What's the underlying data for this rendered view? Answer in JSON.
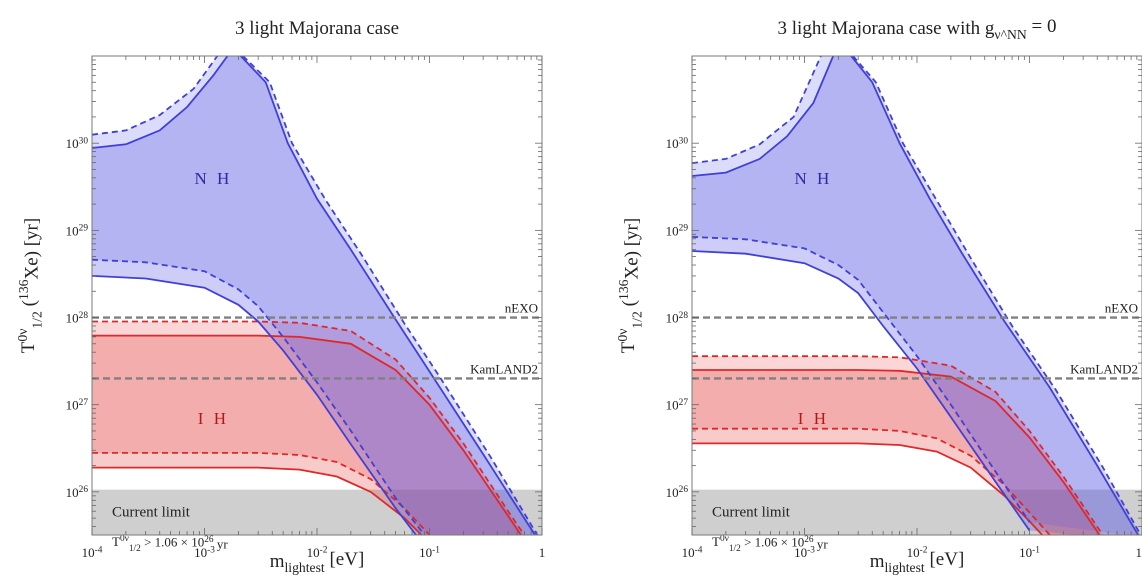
{
  "chart_data": [
    {
      "type": "area",
      "title": "3 light Majorana case",
      "xlabel": "m_lightest [eV]",
      "ylabel": "T^{0ν}_{1/2} (136Xe) [yr]",
      "xscale": "log",
      "yscale": "log",
      "xlim": [
        0.0001,
        1
      ],
      "ylim": [
        3.2e+25,
        1e+31
      ],
      "x_ticks": [
        "10^-4",
        "10^-3",
        "10^-2",
        "10^-1",
        "1"
      ],
      "y_ticks": [
        "10^26",
        "10^27",
        "10^28",
        "10^29",
        "10^30"
      ],
      "limit_lines": [
        {
          "name": "nEXO",
          "value": 1e+28
        },
        {
          "name": "KamLAND2",
          "value": 2e+27
        }
      ],
      "current_limit": {
        "label": "Current limit",
        "text": "T^{0ν}_{1/2} > 1.06 × 10^26 yr",
        "value": 1.06e+26
      },
      "region_labels": {
        "nh": "N H",
        "ih": "I H"
      },
      "series": [
        {
          "name": "N H",
          "color": "#5a5ae6",
          "upper_solid": [
            [
              0.0001,
              8.8e+29
            ],
            [
              0.0002,
              9.7e+29
            ],
            [
              0.0004,
              1.4e+30
            ],
            [
              0.0007,
              2.6e+30
            ],
            [
              0.0012,
              6e+30
            ],
            [
              0.0016,
              1e+31
            ]
          ],
          "upper_dashed": [
            [
              0.0001,
              1.25e+30
            ],
            [
              0.0002,
              1.4e+30
            ],
            [
              0.0004,
              2.1e+30
            ],
            [
              0.0008,
              4.2e+30
            ],
            [
              0.0013,
              1e+31
            ]
          ],
          "right_solid": [
            [
              0.0021,
              1e+31
            ],
            [
              0.0035,
              5e+30
            ],
            [
              0.0055,
              1e+30
            ],
            [
              0.01,
              2.3e+29
            ],
            [
              0.02,
              6e+28
            ],
            [
              0.05,
              9.5e+27
            ],
            [
              0.1,
              2.4e+27
            ],
            [
              0.3,
              2.7e+26
            ],
            [
              1,
              2.4e+25
            ]
          ],
          "right_dashed": [
            [
              0.0022,
              1e+31
            ],
            [
              0.0038,
              5e+30
            ],
            [
              0.006,
              1e+30
            ],
            [
              0.012,
              2.2e+29
            ],
            [
              0.025,
              5.2e+28
            ],
            [
              0.06,
              8.5e+27
            ],
            [
              0.12,
              2.2e+27
            ],
            [
              0.35,
              2.5e+26
            ],
            [
              1,
              2.6e+25
            ]
          ],
          "lower_solid": [
            [
              0.0001,
              3e+28
            ],
            [
              0.0003,
              2.8e+28
            ],
            [
              0.001,
              2.2e+28
            ],
            [
              0.002,
              1.4e+28
            ],
            [
              0.003,
              9e+27
            ],
            [
              0.005,
              4.2e+27
            ],
            [
              0.01,
              1.3e+27
            ],
            [
              0.02,
              3.5e+26
            ],
            [
              0.05,
              6.5e+25
            ],
            [
              0.1,
              2e+25
            ]
          ],
          "lower_dashed": [
            [
              0.0001,
              4.6e+28
            ],
            [
              0.0003,
              4.3e+28
            ],
            [
              0.001,
              3.4e+28
            ],
            [
              0.002,
              2.1e+28
            ],
            [
              0.003,
              1.35e+28
            ],
            [
              0.005,
              6e+27
            ],
            [
              0.01,
              1.8e+27
            ],
            [
              0.02,
              5e+26
            ],
            [
              0.05,
              8.5e+25
            ],
            [
              0.12,
              2e+25
            ]
          ]
        },
        {
          "name": "I H",
          "color": "#e64545",
          "upper_solid": [
            [
              0.0001,
              6.2e+27
            ],
            [
              0.003,
              6.2e+27
            ],
            [
              0.007,
              6e+27
            ],
            [
              0.02,
              5e+27
            ],
            [
              0.05,
              2.5e+27
            ],
            [
              0.1,
              1e+27
            ],
            [
              0.2,
              3e+26
            ],
            [
              0.5,
              5.3e+25
            ],
            [
              1,
              1.4e+25
            ]
          ],
          "upper_dashed": [
            [
              0.0001,
              9e+27
            ],
            [
              0.003,
              9e+27
            ],
            [
              0.007,
              8.7e+27
            ],
            [
              0.02,
              7e+27
            ],
            [
              0.05,
              3.3e+27
            ],
            [
              0.1,
              1.2e+27
            ],
            [
              0.2,
              3.6e+26
            ],
            [
              0.5,
              6e+25
            ],
            [
              1,
              1.6e+25
            ]
          ],
          "lower_solid": [
            [
              0.0001,
              1.9e+26
            ],
            [
              0.003,
              1.9e+26
            ],
            [
              0.007,
              1.8e+26
            ],
            [
              0.015,
              1.5e+26
            ],
            [
              0.03,
              1e+26
            ],
            [
              0.06,
              5e+25
            ],
            [
              0.1,
              2.6e+25
            ],
            [
              0.2,
              8e+24
            ]
          ],
          "lower_dashed": [
            [
              0.0001,
              2.8e+26
            ],
            [
              0.003,
              2.8e+26
            ],
            [
              0.007,
              2.65e+26
            ],
            [
              0.015,
              2.2e+26
            ],
            [
              0.03,
              1.4e+26
            ],
            [
              0.06,
              6.5e+25
            ],
            [
              0.1,
              3.2e+25
            ],
            [
              0.2,
              1e+25
            ]
          ]
        }
      ]
    },
    {
      "type": "area",
      "title": "3 light Majorana case with g_ν^NN = 0",
      "xlabel": "m_lightest [eV]",
      "ylabel": "T^{0ν}_{1/2} (136Xe) [yr]",
      "xscale": "log",
      "yscale": "log",
      "xlim": [
        0.0001,
        1
      ],
      "ylim": [
        3.2e+25,
        1e+31
      ],
      "x_ticks": [
        "10^-4",
        "10^-3",
        "10^-2",
        "10^-1",
        "1"
      ],
      "y_ticks": [
        "10^26",
        "10^27",
        "10^28",
        "10^29",
        "10^30"
      ],
      "limit_lines": [
        {
          "name": "nEXO",
          "value": 1e+28
        },
        {
          "name": "KamLAND2",
          "value": 2e+27
        }
      ],
      "current_limit": {
        "label": "Current limit",
        "text": "T^{0ν}_{1/2} > 1.06 × 10^26 yr",
        "value": 1.06e+26
      },
      "region_labels": {
        "nh": "N H",
        "ih": "I H"
      },
      "series": [
        {
          "name": "N H",
          "color": "#5a5ae6",
          "upper_solid": [
            [
              0.0001,
              4.2e+29
            ],
            [
              0.0002,
              4.6e+29
            ],
            [
              0.0004,
              6.6e+29
            ],
            [
              0.0007,
              1.2e+30
            ],
            [
              0.0012,
              2.9e+30
            ],
            [
              0.0018,
              1e+31
            ]
          ],
          "upper_dashed": [
            [
              0.0001,
              5.9e+29
            ],
            [
              0.0002,
              6.6e+29
            ],
            [
              0.0004,
              9.7e+29
            ],
            [
              0.0008,
              2e+30
            ],
            [
              0.0014,
              1e+31
            ]
          ],
          "right_solid": [
            [
              0.0026,
              1e+31
            ],
            [
              0.004,
              5e+30
            ],
            [
              0.007,
              1e+30
            ],
            [
              0.013,
              2.3e+29
            ],
            [
              0.025,
              5.5e+28
            ],
            [
              0.06,
              9e+27
            ],
            [
              0.15,
              1.6e+27
            ],
            [
              0.4,
              2e+26
            ],
            [
              1,
              2.7e+25
            ]
          ],
          "right_dashed": [
            [
              0.0027,
              1e+31
            ],
            [
              0.0043,
              5e+30
            ],
            [
              0.0075,
              1e+30
            ],
            [
              0.015,
              2.2e+29
            ],
            [
              0.03,
              4.8e+28
            ],
            [
              0.07,
              8e+27
            ],
            [
              0.17,
              1.5e+27
            ],
            [
              0.45,
              1.9e+26
            ],
            [
              1,
              3e+25
            ]
          ],
          "lower_solid": [
            [
              0.0001,
              5.8e+28
            ],
            [
              0.0003,
              5.4e+28
            ],
            [
              0.001,
              4.2e+28
            ],
            [
              0.002,
              2.8e+28
            ],
            [
              0.003,
              1.9e+28
            ],
            [
              0.005,
              8e+27
            ],
            [
              0.01,
              2.6e+27
            ],
            [
              0.02,
              7.2e+26
            ],
            [
              0.05,
              1.3e+26
            ],
            [
              0.1,
              3.6e+25
            ]
          ],
          "lower_dashed": [
            [
              0.0001,
              8.4e+28
            ],
            [
              0.0003,
              7.9e+28
            ],
            [
              0.001,
              6.2e+28
            ],
            [
              0.002,
              4e+28
            ],
            [
              0.003,
              2.7e+28
            ],
            [
              0.005,
              1.15e+28
            ],
            [
              0.01,
              3.6e+27
            ],
            [
              0.02,
              1e+27
            ],
            [
              0.05,
              1.7e+26
            ],
            [
              0.1,
              4.5e+25
            ]
          ]
        },
        {
          "name": "I H",
          "color": "#e64545",
          "upper_solid": [
            [
              0.0001,
              2.5e+27
            ],
            [
              0.003,
              2.5e+27
            ],
            [
              0.007,
              2.45e+27
            ],
            [
              0.02,
              2.1e+27
            ],
            [
              0.05,
              1.1e+27
            ],
            [
              0.1,
              4.2e+26
            ],
            [
              0.2,
              1.3e+26
            ],
            [
              0.5,
              2.3e+25
            ],
            [
              1,
              6e+24
            ]
          ],
          "upper_dashed": [
            [
              0.0001,
              3.6e+27
            ],
            [
              0.003,
              3.6e+27
            ],
            [
              0.007,
              3.5e+27
            ],
            [
              0.02,
              2.8e+27
            ],
            [
              0.05,
              1.4e+27
            ],
            [
              0.1,
              5e+26
            ],
            [
              0.2,
              1.5e+26
            ],
            [
              0.5,
              2.6e+25
            ],
            [
              1,
              7e+24
            ]
          ],
          "lower_solid": [
            [
              0.0001,
              3.6e+26
            ],
            [
              0.003,
              3.6e+26
            ],
            [
              0.007,
              3.45e+26
            ],
            [
              0.015,
              2.9e+26
            ],
            [
              0.03,
              1.9e+26
            ],
            [
              0.06,
              9e+25
            ],
            [
              0.1,
              4.6e+25
            ],
            [
              0.3,
              1e+25
            ]
          ],
          "lower_dashed": [
            [
              0.0001,
              5.3e+26
            ],
            [
              0.003,
              5.3e+26
            ],
            [
              0.007,
              5e+26
            ],
            [
              0.015,
              4.1e+26
            ],
            [
              0.03,
              2.6e+26
            ],
            [
              0.06,
              1.2e+26
            ],
            [
              0.1,
              5.8e+25
            ],
            [
              0.3,
              1.2e+25
            ]
          ]
        }
      ]
    }
  ]
}
